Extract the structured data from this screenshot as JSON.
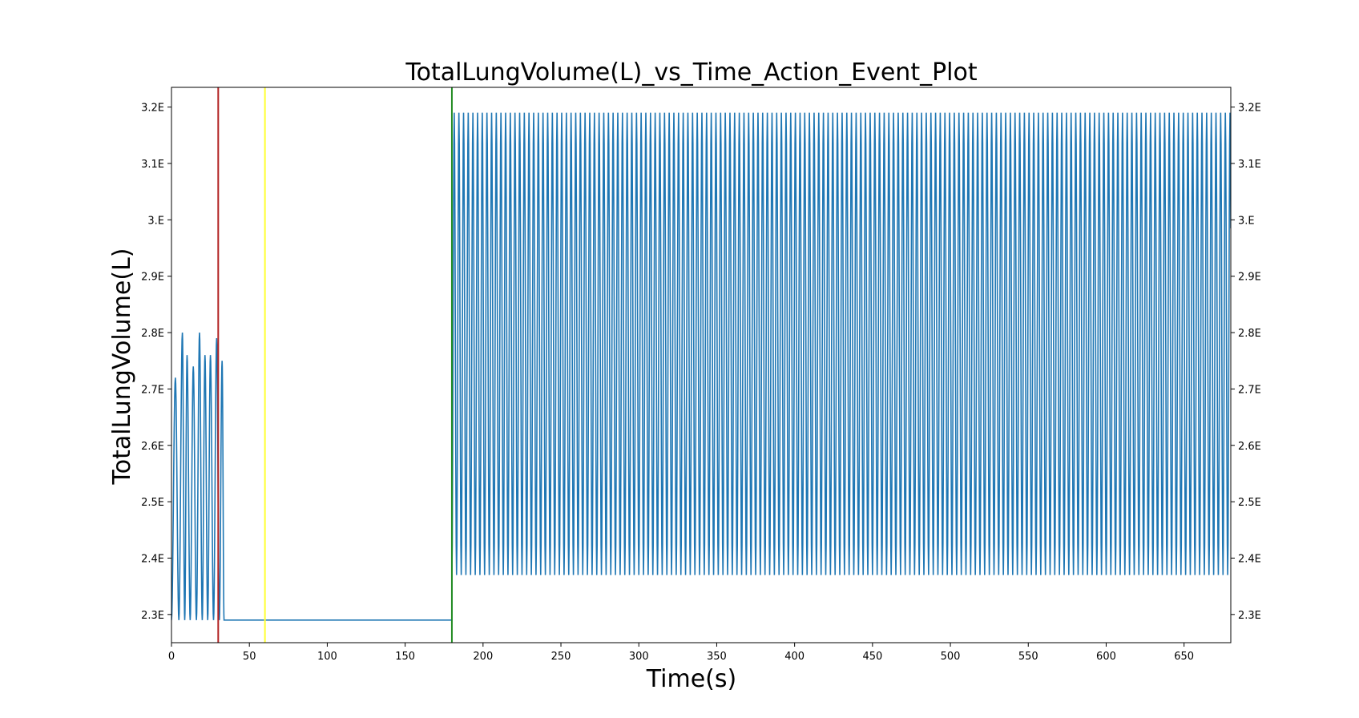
{
  "chart_data": {
    "type": "line",
    "title": "TotalLungVolume(L)_vs_Time_Action_Event_Plot",
    "xlabel": "Time(s)",
    "ylabel": "TotalLungVolume(L)",
    "xlim": [
      0,
      680
    ],
    "ylim": [
      2.25,
      3.235
    ],
    "x_ticks": [
      0,
      50,
      100,
      150,
      200,
      250,
      300,
      350,
      400,
      450,
      500,
      550,
      600,
      650
    ],
    "y_ticks": [
      {
        "value": 2.3,
        "label": "2.3E"
      },
      {
        "value": 2.4,
        "label": "2.4E"
      },
      {
        "value": 2.5,
        "label": "2.5E"
      },
      {
        "value": 2.6,
        "label": "2.6E"
      },
      {
        "value": 2.7,
        "label": "2.7E"
      },
      {
        "value": 2.8,
        "label": "2.8E"
      },
      {
        "value": 2.9,
        "label": "2.9E"
      },
      {
        "value": 3.0,
        "label": "3.E"
      },
      {
        "value": 3.1,
        "label": "3.1E"
      },
      {
        "value": 3.2,
        "label": "3.2E"
      }
    ],
    "right_y_ticks": true,
    "grid": false,
    "series_color": "#1f77b4",
    "event_lines": [
      {
        "x": 30,
        "color": "#b22222"
      },
      {
        "x": 60,
        "color": "#ffff33"
      },
      {
        "x": 180,
        "color": "#228b22"
      }
    ],
    "segments": {
      "initial_breaths": {
        "x_start": 0,
        "baseline": 2.29,
        "peaks": [
          {
            "x": 2.5,
            "y": 2.72
          },
          {
            "x": 7,
            "y": 2.8
          },
          {
            "x": 10,
            "y": 2.76
          },
          {
            "x": 14,
            "y": 2.74
          },
          {
            "x": 18,
            "y": 2.8
          },
          {
            "x": 21.5,
            "y": 2.76
          },
          {
            "x": 25,
            "y": 2.76
          },
          {
            "x": 29,
            "y": 2.79
          },
          {
            "x": 32.5,
            "y": 2.75
          }
        ],
        "end_x": 35
      },
      "flat": {
        "x_start": 35,
        "x_end": 180,
        "y": 2.29
      },
      "oscillation": {
        "x_start": 180,
        "x_end": 680,
        "min": 2.37,
        "max": 3.19,
        "period": 3.0
      }
    }
  }
}
